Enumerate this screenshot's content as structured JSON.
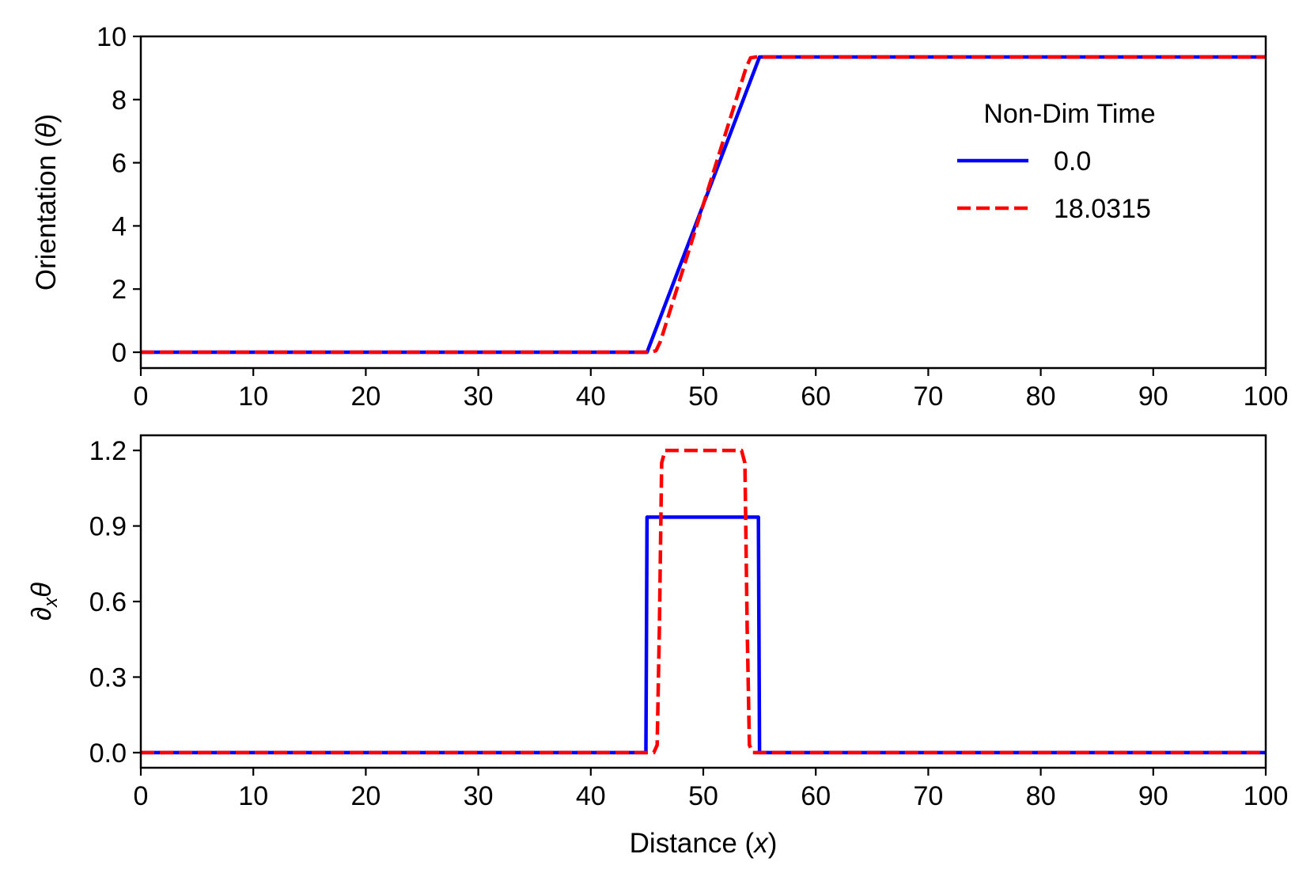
{
  "chart_data": [
    {
      "type": "line",
      "title": "",
      "xlabel": "Distance (",
      "xlabel_var": "x",
      "xlabel_close": ")",
      "ylabel": "Orientation (",
      "ylabel_var": "θ",
      "ylabel_close": ")",
      "xlim": [
        0,
        100
      ],
      "ylim": [
        -0.5,
        10
      ],
      "xticks": [
        0,
        10,
        20,
        30,
        40,
        50,
        60,
        70,
        80,
        90,
        100
      ],
      "yticks": [
        0,
        2,
        4,
        6,
        8,
        10
      ],
      "ytick_labels": [
        "0",
        "2",
        "4",
        "6",
        "8",
        "10"
      ],
      "grid": false,
      "legend": {
        "title": "Non-Dim Time",
        "placement": "upper-right",
        "entries": [
          "0.0",
          "18.0315"
        ]
      },
      "series": [
        {
          "name": "0.0",
          "color": "#0000ff",
          "style": "solid",
          "points": [
            [
              0,
              0
            ],
            [
              45,
              0
            ],
            [
              55,
              9.35
            ],
            [
              100,
              9.35
            ]
          ]
        },
        {
          "name": "18.0315",
          "color": "#ff0000",
          "style": "dashed",
          "points": [
            [
              0,
              0
            ],
            [
              45.3,
              0
            ],
            [
              45.8,
              0.05
            ],
            [
              46.2,
              0.35
            ],
            [
              53.8,
              9.0
            ],
            [
              54.2,
              9.32
            ],
            [
              54.7,
              9.35
            ],
            [
              100,
              9.35
            ]
          ]
        }
      ]
    },
    {
      "type": "line",
      "title": "",
      "xlabel": "Distance (",
      "xlabel_var": "x",
      "xlabel_close": ")",
      "ylabel": "∂",
      "ylabel_sub": "x",
      "ylabel_var": "θ",
      "xlim": [
        0,
        100
      ],
      "ylim": [
        -0.06,
        1.26
      ],
      "xticks": [
        0,
        10,
        20,
        30,
        40,
        50,
        60,
        70,
        80,
        90,
        100
      ],
      "yticks": [
        0,
        0.3,
        0.6,
        0.9,
        1.2
      ],
      "ytick_labels": [
        "0.0",
        "0.3",
        "0.6",
        "0.9",
        "1.2"
      ],
      "grid": false,
      "series": [
        {
          "name": "0.0",
          "color": "#0000ff",
          "style": "solid",
          "points": [
            [
              0,
              0
            ],
            [
              44.9,
              0
            ],
            [
              45.0,
              0.935
            ],
            [
              54.9,
              0.935
            ],
            [
              55.0,
              0
            ],
            [
              100,
              0
            ]
          ]
        },
        {
          "name": "18.0315",
          "color": "#ff0000",
          "style": "dashed",
          "points": [
            [
              0,
              0
            ],
            [
              45.6,
              0
            ],
            [
              45.9,
              0.03
            ],
            [
              46.1,
              0.5
            ],
            [
              46.3,
              1.15
            ],
            [
              46.6,
              1.2
            ],
            [
              53.4,
              1.2
            ],
            [
              53.7,
              1.15
            ],
            [
              53.9,
              0.5
            ],
            [
              54.1,
              0.03
            ],
            [
              54.4,
              0
            ],
            [
              100,
              0
            ]
          ]
        }
      ]
    }
  ]
}
